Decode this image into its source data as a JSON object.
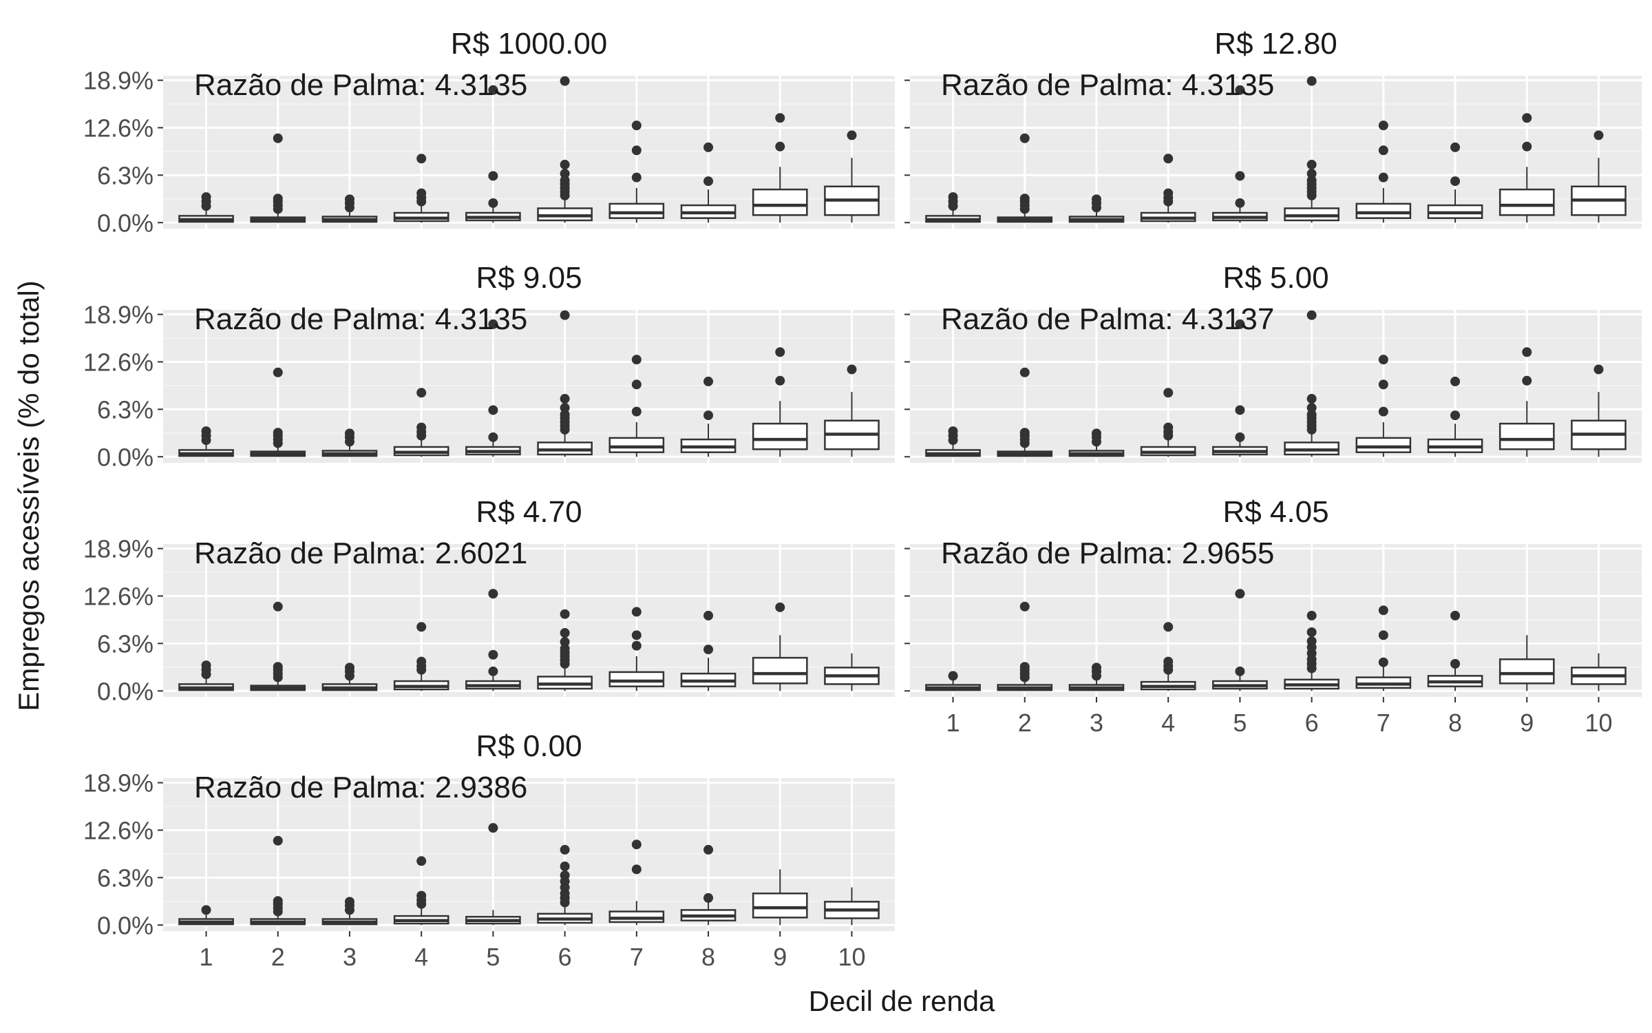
{
  "chart_data": {
    "type": "boxplot",
    "xlabel": "Decil de renda",
    "ylabel": "Empregos acessíveis (% do total)",
    "y_ticks": [
      "0.0%",
      "6.3%",
      "12.6%",
      "18.9%"
    ],
    "y_tick_values": [
      0.0,
      6.3,
      12.6,
      18.9
    ],
    "ylim": [
      -0.8,
      19.5
    ],
    "categories": [
      "1",
      "2",
      "3",
      "4",
      "5",
      "6",
      "7",
      "8",
      "9",
      "10"
    ],
    "panels": [
      {
        "title": "R$ 1000.00",
        "annotation": "Razão de Palma: 4.3135",
        "show_x_ticks": false,
        "boxes": [
          {
            "q1": 0.1,
            "med": 0.4,
            "q3": 0.9,
            "lo": 0.0,
            "hi": 1.8,
            "out": [
              2.2,
              2.8,
              3.4
            ]
          },
          {
            "q1": 0.1,
            "med": 0.4,
            "q3": 0.7,
            "lo": 0.0,
            "hi": 1.4,
            "out": [
              1.8,
              2.3,
              2.8,
              3.2,
              11.2
            ]
          },
          {
            "q1": 0.1,
            "med": 0.4,
            "q3": 0.8,
            "lo": 0.0,
            "hi": 1.5,
            "out": [
              2.0,
              2.6,
              3.1
            ]
          },
          {
            "q1": 0.2,
            "med": 0.6,
            "q3": 1.3,
            "lo": 0.0,
            "hi": 2.3,
            "out": [
              2.8,
              3.3,
              3.9,
              8.5
            ]
          },
          {
            "q1": 0.3,
            "med": 0.7,
            "q3": 1.3,
            "lo": 0.0,
            "hi": 2.2,
            "out": [
              2.6,
              6.2,
              17.6
            ]
          },
          {
            "q1": 0.3,
            "med": 0.9,
            "q3": 1.9,
            "lo": 0.0,
            "hi": 3.2,
            "out": [
              3.6,
              4.1,
              4.6,
              5.1,
              5.6,
              6.5,
              7.7,
              18.8
            ]
          },
          {
            "q1": 0.6,
            "med": 1.3,
            "q3": 2.5,
            "lo": 0.0,
            "hi": 4.6,
            "out": [
              6.0,
              9.6,
              12.9
            ]
          },
          {
            "q1": 0.6,
            "med": 1.3,
            "q3": 2.3,
            "lo": 0.0,
            "hi": 4.4,
            "out": [
              5.5,
              10.0
            ]
          },
          {
            "q1": 1.0,
            "med": 2.3,
            "q3": 4.4,
            "lo": 0.0,
            "hi": 7.4,
            "out": [
              10.1,
              13.9
            ]
          },
          {
            "q1": 1.0,
            "med": 3.0,
            "q3": 4.8,
            "lo": 0.0,
            "hi": 8.6,
            "out": [
              11.6
            ]
          }
        ]
      },
      {
        "title": "R$ 12.80",
        "annotation": "Razão de Palma: 4.3135",
        "show_x_ticks": false,
        "boxes": [
          {
            "q1": 0.1,
            "med": 0.4,
            "q3": 0.9,
            "lo": 0.0,
            "hi": 1.8,
            "out": [
              2.2,
              2.8,
              3.4
            ]
          },
          {
            "q1": 0.1,
            "med": 0.4,
            "q3": 0.7,
            "lo": 0.0,
            "hi": 1.4,
            "out": [
              1.8,
              2.3,
              2.8,
              3.2,
              11.2
            ]
          },
          {
            "q1": 0.1,
            "med": 0.4,
            "q3": 0.8,
            "lo": 0.0,
            "hi": 1.5,
            "out": [
              2.0,
              2.6,
              3.1
            ]
          },
          {
            "q1": 0.2,
            "med": 0.6,
            "q3": 1.3,
            "lo": 0.0,
            "hi": 2.3,
            "out": [
              2.8,
              3.3,
              3.9,
              8.5
            ]
          },
          {
            "q1": 0.3,
            "med": 0.7,
            "q3": 1.3,
            "lo": 0.0,
            "hi": 2.2,
            "out": [
              2.6,
              6.2,
              17.6
            ]
          },
          {
            "q1": 0.3,
            "med": 0.9,
            "q3": 1.9,
            "lo": 0.0,
            "hi": 3.2,
            "out": [
              3.6,
              4.1,
              4.6,
              5.1,
              5.6,
              6.5,
              7.7,
              18.8
            ]
          },
          {
            "q1": 0.6,
            "med": 1.3,
            "q3": 2.5,
            "lo": 0.0,
            "hi": 4.6,
            "out": [
              6.0,
              9.6,
              12.9
            ]
          },
          {
            "q1": 0.6,
            "med": 1.3,
            "q3": 2.3,
            "lo": 0.0,
            "hi": 4.4,
            "out": [
              5.5,
              10.0
            ]
          },
          {
            "q1": 1.0,
            "med": 2.3,
            "q3": 4.4,
            "lo": 0.0,
            "hi": 7.4,
            "out": [
              10.1,
              13.9
            ]
          },
          {
            "q1": 1.0,
            "med": 3.0,
            "q3": 4.8,
            "lo": 0.0,
            "hi": 8.6,
            "out": [
              11.6
            ]
          }
        ]
      },
      {
        "title": "R$ 9.05",
        "annotation": "Razão de Palma: 4.3135",
        "show_x_ticks": false,
        "boxes": [
          {
            "q1": 0.1,
            "med": 0.4,
            "q3": 0.9,
            "lo": 0.0,
            "hi": 1.8,
            "out": [
              2.2,
              2.8,
              3.4
            ]
          },
          {
            "q1": 0.1,
            "med": 0.4,
            "q3": 0.7,
            "lo": 0.0,
            "hi": 1.4,
            "out": [
              1.8,
              2.3,
              2.8,
              3.2,
              11.2
            ]
          },
          {
            "q1": 0.1,
            "med": 0.4,
            "q3": 0.8,
            "lo": 0.0,
            "hi": 1.5,
            "out": [
              2.0,
              2.6,
              3.1
            ]
          },
          {
            "q1": 0.2,
            "med": 0.6,
            "q3": 1.3,
            "lo": 0.0,
            "hi": 2.3,
            "out": [
              2.8,
              3.3,
              3.9,
              8.5
            ]
          },
          {
            "q1": 0.3,
            "med": 0.7,
            "q3": 1.3,
            "lo": 0.0,
            "hi": 2.2,
            "out": [
              2.6,
              6.2,
              17.6
            ]
          },
          {
            "q1": 0.3,
            "med": 0.9,
            "q3": 1.9,
            "lo": 0.0,
            "hi": 3.2,
            "out": [
              3.6,
              4.1,
              4.6,
              5.1,
              5.6,
              6.5,
              7.7,
              18.8
            ]
          },
          {
            "q1": 0.6,
            "med": 1.3,
            "q3": 2.5,
            "lo": 0.0,
            "hi": 4.6,
            "out": [
              6.0,
              9.6,
              12.9
            ]
          },
          {
            "q1": 0.6,
            "med": 1.3,
            "q3": 2.3,
            "lo": 0.0,
            "hi": 4.4,
            "out": [
              5.5,
              10.0
            ]
          },
          {
            "q1": 1.0,
            "med": 2.3,
            "q3": 4.4,
            "lo": 0.0,
            "hi": 7.4,
            "out": [
              10.1,
              13.9
            ]
          },
          {
            "q1": 1.0,
            "med": 3.0,
            "q3": 4.8,
            "lo": 0.0,
            "hi": 8.6,
            "out": [
              11.6
            ]
          }
        ]
      },
      {
        "title": "R$ 5.00",
        "annotation": "Razão de Palma: 4.3137",
        "show_x_ticks": false,
        "boxes": [
          {
            "q1": 0.1,
            "med": 0.4,
            "q3": 0.9,
            "lo": 0.0,
            "hi": 1.8,
            "out": [
              2.2,
              2.8,
              3.4
            ]
          },
          {
            "q1": 0.1,
            "med": 0.4,
            "q3": 0.7,
            "lo": 0.0,
            "hi": 1.4,
            "out": [
              1.8,
              2.3,
              2.8,
              3.2,
              11.2
            ]
          },
          {
            "q1": 0.1,
            "med": 0.4,
            "q3": 0.8,
            "lo": 0.0,
            "hi": 1.5,
            "out": [
              2.0,
              2.6,
              3.1
            ]
          },
          {
            "q1": 0.2,
            "med": 0.6,
            "q3": 1.3,
            "lo": 0.0,
            "hi": 2.3,
            "out": [
              2.8,
              3.3,
              3.9,
              8.5
            ]
          },
          {
            "q1": 0.3,
            "med": 0.7,
            "q3": 1.3,
            "lo": 0.0,
            "hi": 2.2,
            "out": [
              2.6,
              6.2,
              17.6
            ]
          },
          {
            "q1": 0.3,
            "med": 0.9,
            "q3": 1.9,
            "lo": 0.0,
            "hi": 3.2,
            "out": [
              3.6,
              4.1,
              4.6,
              5.1,
              5.6,
              6.5,
              7.7,
              18.8
            ]
          },
          {
            "q1": 0.6,
            "med": 1.3,
            "q3": 2.5,
            "lo": 0.0,
            "hi": 4.6,
            "out": [
              6.0,
              9.6,
              12.9
            ]
          },
          {
            "q1": 0.6,
            "med": 1.3,
            "q3": 2.3,
            "lo": 0.0,
            "hi": 4.4,
            "out": [
              5.5,
              10.0
            ]
          },
          {
            "q1": 1.0,
            "med": 2.3,
            "q3": 4.4,
            "lo": 0.0,
            "hi": 7.4,
            "out": [
              10.1,
              13.9
            ]
          },
          {
            "q1": 1.0,
            "med": 3.0,
            "q3": 4.8,
            "lo": 0.0,
            "hi": 8.6,
            "out": [
              11.6
            ]
          }
        ]
      },
      {
        "title": "R$ 4.70",
        "annotation": "Razão de Palma: 2.6021",
        "show_x_ticks": false,
        "boxes": [
          {
            "q1": 0.1,
            "med": 0.4,
            "q3": 0.9,
            "lo": 0.0,
            "hi": 1.8,
            "out": [
              2.2,
              2.8,
              3.4
            ]
          },
          {
            "q1": 0.1,
            "med": 0.4,
            "q3": 0.7,
            "lo": 0.0,
            "hi": 1.4,
            "out": [
              1.8,
              2.3,
              2.8,
              3.2,
              11.2
            ]
          },
          {
            "q1": 0.1,
            "med": 0.4,
            "q3": 0.9,
            "lo": 0.0,
            "hi": 1.5,
            "out": [
              2.0,
              2.6,
              3.1
            ]
          },
          {
            "q1": 0.2,
            "med": 0.6,
            "q3": 1.3,
            "lo": 0.0,
            "hi": 2.3,
            "out": [
              2.8,
              3.3,
              3.9,
              8.5
            ]
          },
          {
            "q1": 0.3,
            "med": 0.7,
            "q3": 1.3,
            "lo": 0.0,
            "hi": 2.2,
            "out": [
              2.6,
              4.8,
              12.9
            ]
          },
          {
            "q1": 0.3,
            "med": 0.9,
            "q3": 1.9,
            "lo": 0.0,
            "hi": 3.2,
            "out": [
              3.6,
              4.1,
              4.6,
              5.1,
              5.6,
              6.5,
              7.7,
              10.2
            ]
          },
          {
            "q1": 0.6,
            "med": 1.3,
            "q3": 2.5,
            "lo": 0.0,
            "hi": 4.6,
            "out": [
              6.0,
              7.4,
              10.5
            ]
          },
          {
            "q1": 0.6,
            "med": 1.3,
            "q3": 2.3,
            "lo": 0.0,
            "hi": 4.4,
            "out": [
              5.5,
              10.0
            ]
          },
          {
            "q1": 1.0,
            "med": 2.3,
            "q3": 4.4,
            "lo": 0.0,
            "hi": 7.4,
            "out": [
              11.1
            ]
          },
          {
            "q1": 0.9,
            "med": 2.0,
            "q3": 3.1,
            "lo": 0.0,
            "hi": 5.0,
            "out": []
          }
        ]
      },
      {
        "title": "R$ 4.05",
        "annotation": "Razão de Palma: 2.9655",
        "show_x_ticks": true,
        "boxes": [
          {
            "q1": 0.1,
            "med": 0.4,
            "q3": 0.8,
            "lo": 0.0,
            "hi": 1.4,
            "out": [
              2.0
            ]
          },
          {
            "q1": 0.1,
            "med": 0.4,
            "q3": 0.8,
            "lo": 0.0,
            "hi": 1.4,
            "out": [
              1.8,
              2.3,
              2.8,
              3.2,
              11.2
            ]
          },
          {
            "q1": 0.1,
            "med": 0.4,
            "q3": 0.8,
            "lo": 0.0,
            "hi": 1.5,
            "out": [
              2.0,
              2.6,
              3.1
            ]
          },
          {
            "q1": 0.2,
            "med": 0.6,
            "q3": 1.2,
            "lo": 0.0,
            "hi": 2.2,
            "out": [
              2.8,
              3.3,
              3.9,
              8.5
            ]
          },
          {
            "q1": 0.3,
            "med": 0.7,
            "q3": 1.3,
            "lo": 0.0,
            "hi": 2.2,
            "out": [
              2.6,
              12.9
            ]
          },
          {
            "q1": 0.3,
            "med": 0.8,
            "q3": 1.5,
            "lo": 0.0,
            "hi": 2.6,
            "out": [
              3.0,
              3.6,
              4.2,
              5.0,
              5.8,
              6.6,
              7.8,
              10.0
            ]
          },
          {
            "q1": 0.4,
            "med": 0.9,
            "q3": 1.8,
            "lo": 0.0,
            "hi": 3.2,
            "out": [
              3.8,
              7.4,
              10.7
            ]
          },
          {
            "q1": 0.6,
            "med": 1.2,
            "q3": 2.0,
            "lo": 0.0,
            "hi": 3.2,
            "out": [
              3.6,
              10.0
            ]
          },
          {
            "q1": 1.0,
            "med": 2.3,
            "q3": 4.2,
            "lo": 0.0,
            "hi": 7.4,
            "out": []
          },
          {
            "q1": 0.9,
            "med": 2.0,
            "q3": 3.1,
            "lo": 0.0,
            "hi": 5.0,
            "out": []
          }
        ]
      },
      {
        "title": "R$ 0.00",
        "annotation": "Razão de Palma: 2.9386",
        "show_x_ticks": true,
        "boxes": [
          {
            "q1": 0.1,
            "med": 0.4,
            "q3": 0.8,
            "lo": 0.0,
            "hi": 1.4,
            "out": [
              2.0
            ]
          },
          {
            "q1": 0.1,
            "med": 0.4,
            "q3": 0.8,
            "lo": 0.0,
            "hi": 1.4,
            "out": [
              1.8,
              2.3,
              2.8,
              3.2,
              11.2
            ]
          },
          {
            "q1": 0.1,
            "med": 0.4,
            "q3": 0.8,
            "lo": 0.0,
            "hi": 1.5,
            "out": [
              2.0,
              2.6,
              3.1
            ]
          },
          {
            "q1": 0.2,
            "med": 0.6,
            "q3": 1.2,
            "lo": 0.0,
            "hi": 2.2,
            "out": [
              2.8,
              3.3,
              3.9,
              8.5
            ]
          },
          {
            "q1": 0.2,
            "med": 0.6,
            "q3": 1.1,
            "lo": 0.0,
            "hi": 2.0,
            "out": [
              12.9
            ]
          },
          {
            "q1": 0.3,
            "med": 0.8,
            "q3": 1.5,
            "lo": 0.0,
            "hi": 2.6,
            "out": [
              3.0,
              3.6,
              4.2,
              5.0,
              5.8,
              6.6,
              7.8,
              10.0
            ]
          },
          {
            "q1": 0.4,
            "med": 0.9,
            "q3": 1.8,
            "lo": 0.0,
            "hi": 3.2,
            "out": [
              7.4,
              10.7
            ]
          },
          {
            "q1": 0.6,
            "med": 1.2,
            "q3": 2.0,
            "lo": 0.0,
            "hi": 3.2,
            "out": [
              3.6,
              10.0
            ]
          },
          {
            "q1": 1.0,
            "med": 2.3,
            "q3": 4.2,
            "lo": 0.0,
            "hi": 7.4,
            "out": []
          },
          {
            "q1": 0.9,
            "med": 2.0,
            "q3": 3.1,
            "lo": 0.0,
            "hi": 5.0,
            "out": []
          }
        ]
      }
    ]
  }
}
